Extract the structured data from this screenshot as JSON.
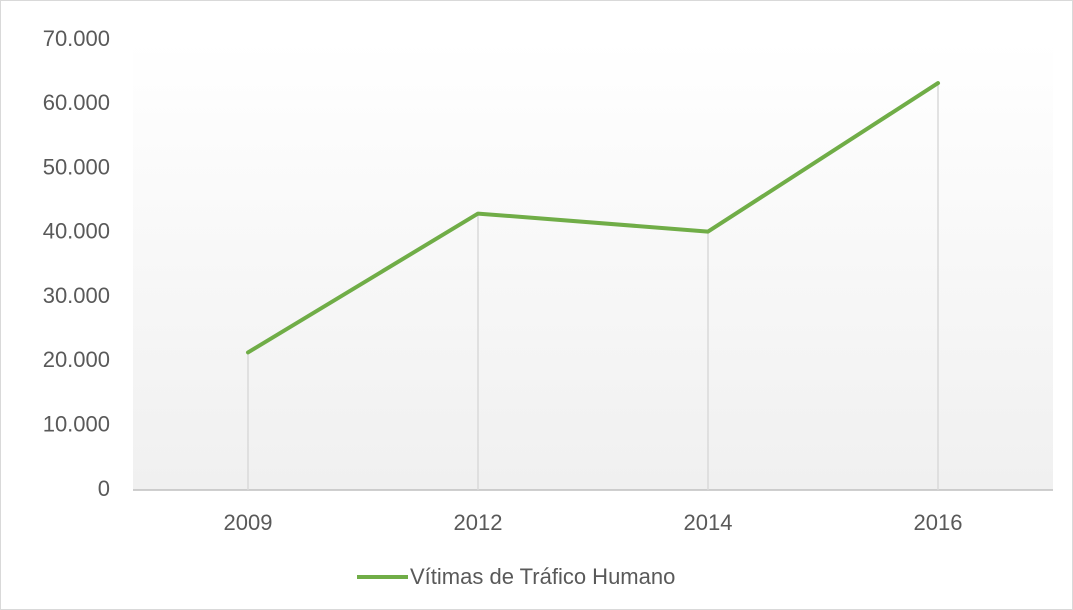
{
  "chart_data": {
    "type": "line",
    "categories": [
      "2009",
      "2012",
      "2014",
      "2016"
    ],
    "series": [
      {
        "name": "Vítimas de Tráfico Humano",
        "color": "#70ad47",
        "values": [
          21400,
          43000,
          40200,
          63300
        ]
      }
    ],
    "ylim": [
      0,
      70000
    ],
    "yticks": [
      0,
      {
        "value": 10000,
        "label": "10.000"
      },
      {
        "value": 20000,
        "label": "20.000"
      },
      {
        "value": 30000,
        "label": "30.000"
      },
      {
        "value": 40000,
        "label": "40.000"
      },
      {
        "value": 50000,
        "label": "50.000"
      },
      {
        "value": 60000,
        "label": "60.000"
      },
      {
        "value": 70000,
        "label": "70.000"
      }
    ],
    "drop_lines": true,
    "legend": "bottom"
  }
}
